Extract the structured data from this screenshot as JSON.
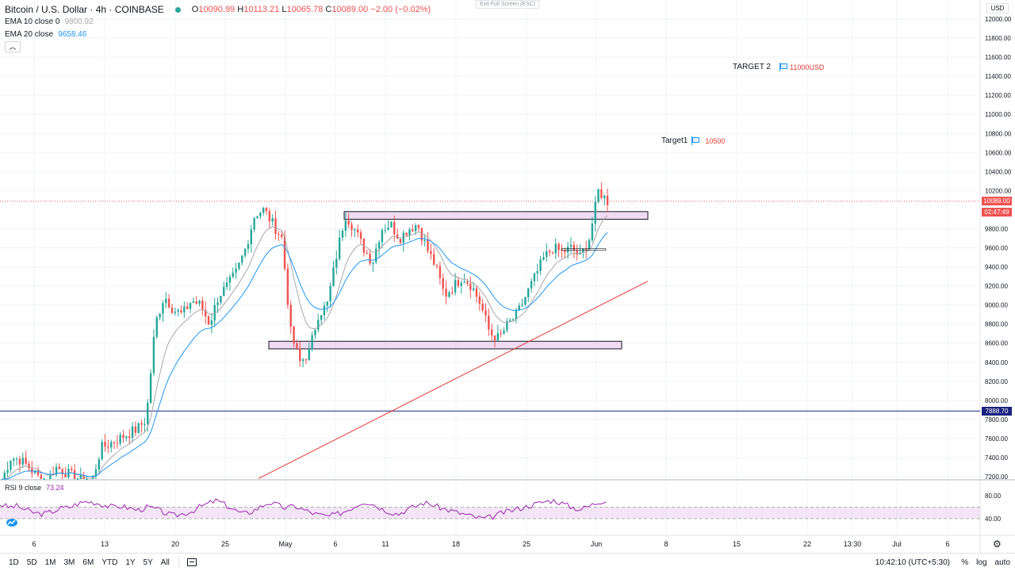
{
  "header": {
    "symbol": "Bitcoin / U.S. Dollar · 4h · COINBASE",
    "ohlc": {
      "o_label": "O",
      "o": "10090.99",
      "h_label": "H",
      "h": "10113.21",
      "l_label": "L",
      "l": "10065.78",
      "c_label": "C",
      "c": "10089.00",
      "change": "−2.00 (−0.02%)"
    },
    "ema10": {
      "name": "EMA 10 close 0",
      "value": "9800.92"
    },
    "ema20": {
      "name": "EMA 20 close",
      "value": "9658.46"
    },
    "collapse_icon": "chevron-up-icon",
    "exit_fullscreen": "Exit Full Screen (ESC)"
  },
  "annotations": {
    "target2": {
      "label": "TARGET 2",
      "price": "11000USD",
      "icon": "flag-icon"
    },
    "target1": {
      "label": "Target1",
      "price": "10500",
      "icon": "flag-icon"
    }
  },
  "price_axis": {
    "currency": "USD",
    "ticks": [
      "12000.00",
      "11800.00",
      "11600.00",
      "11400.00",
      "11200.00",
      "11000.00",
      "10800.00",
      "10600.00",
      "10400.00",
      "10200.00",
      "9800.00",
      "9600.00",
      "9400.00",
      "9200.00",
      "9000.00",
      "8800.00",
      "8600.00",
      "8400.00",
      "8200.00",
      "8000.00",
      "7800.00",
      "7600.00",
      "7400.00",
      "7200.00"
    ],
    "last_price": "10089.00",
    "countdown": "02:47:49",
    "hline_price": "7888.70",
    "colors": {
      "last": "#ef5350",
      "countdown": "#ef5350",
      "hline": "#1a237e"
    }
  },
  "rsi": {
    "name": "RSI 9 close",
    "value": "73.24",
    "ticks": [
      "80.00",
      "40.00"
    ],
    "band": [
      40,
      60
    ],
    "color": "#9c27b0"
  },
  "time_axis": {
    "labels": [
      "6",
      "13",
      "20",
      "25",
      "May",
      "6",
      "11",
      "18",
      "25",
      "Jun",
      "8",
      "15",
      "22",
      "13:30",
      "Jul",
      "6"
    ]
  },
  "chart_data": {
    "type": "candlestick",
    "series": [
      {
        "name": "EMA 10 close 0",
        "color": "#a8a8a8"
      },
      {
        "name": "EMA 20 close",
        "color": "#2196f3"
      }
    ],
    "ylim": [
      7150,
      12100
    ],
    "key_levels": {
      "last": 10089.0,
      "hline": 7888.7,
      "resistance_zone": [
        9900,
        9980
      ],
      "support_zone": [
        8540,
        8620
      ],
      "trendline": [
        [
          7200,
          0
        ],
        [
          9250,
          1
        ]
      ]
    },
    "path_values": [
      7150,
      7400,
      7380,
      7300,
      7200,
      7150,
      7300,
      7250,
      7200,
      7150,
      7150,
      7500,
      7550,
      7600,
      7650,
      7700,
      7800,
      8800,
      9100,
      8950,
      8900,
      9050,
      9000,
      8800,
      9100,
      9200,
      9350,
      9600,
      9950,
      10000,
      9850,
      9700,
      8700,
      8400,
      8500,
      8900,
      9000,
      9500,
      9950,
      9800,
      9600,
      9450,
      9800,
      9850,
      9700,
      9800,
      9850,
      9600,
      9400,
      9100,
      9200,
      9300,
      9200,
      9000,
      8700,
      8650,
      8800,
      8900,
      9100,
      9300,
      9500,
      9600,
      9550,
      9600,
      9500,
      9700,
      10200,
      10089
    ],
    "rsi_values": [
      65,
      60,
      62,
      55,
      50,
      48,
      52,
      58,
      60,
      66,
      70,
      68,
      64,
      60,
      62,
      58,
      55,
      60,
      57,
      50,
      45,
      48,
      52,
      60,
      66,
      72,
      64,
      56,
      48,
      52,
      60,
      68,
      64,
      58,
      62,
      56,
      50,
      46,
      44,
      48,
      54,
      62,
      70,
      66,
      58,
      52,
      48,
      56,
      62,
      68,
      64,
      58,
      54,
      50,
      46,
      42,
      40,
      44,
      50,
      54,
      58,
      62,
      66,
      70,
      72,
      66,
      60,
      56,
      62,
      68,
      73
    ]
  },
  "bottom_bar": {
    "timeframes": [
      "1D",
      "5D",
      "1M",
      "3M",
      "6M",
      "YTD",
      "1Y",
      "5Y",
      "All"
    ],
    "range_icon": "calendar-range-icon",
    "clock": "10:42:10 (UTC+5:30)",
    "percent": "%",
    "log": "log",
    "auto": "auto"
  },
  "settings_icon": "gear-icon",
  "logo": "tradingview-logo-icon"
}
